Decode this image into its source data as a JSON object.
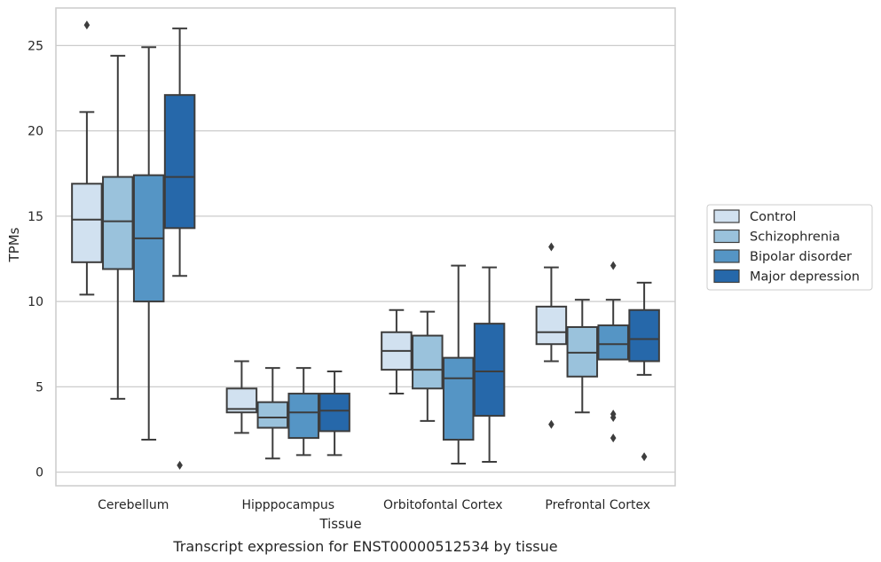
{
  "chart_data": {
    "type": "box",
    "xlabel": "Tissue",
    "ylabel": "TPMs",
    "caption": "Transcript expression for ENST00000512534 by tissue",
    "ylim": [
      -0.8,
      27.2
    ],
    "yticks": [
      0,
      5,
      10,
      15,
      20,
      25
    ],
    "grid": "horizontal",
    "legend_position": "right",
    "categories": [
      "Cerebellum",
      "Hipppocampus",
      "Orbitofontal Cortex",
      "Prefrontal Cortex"
    ],
    "series": [
      {
        "name": "Control",
        "color": "#d1e1f0",
        "boxes": [
          {
            "whislo": 10.4,
            "q1": 12.3,
            "med": 14.8,
            "q3": 16.9,
            "whishi": 21.1,
            "fliers": [
              26.2
            ]
          },
          {
            "whislo": 2.3,
            "q1": 3.5,
            "med": 3.7,
            "q3": 4.9,
            "whishi": 6.5,
            "fliers": []
          },
          {
            "whislo": 4.6,
            "q1": 6.0,
            "med": 7.1,
            "q3": 8.2,
            "whishi": 9.5,
            "fliers": []
          },
          {
            "whislo": 6.5,
            "q1": 7.5,
            "med": 8.2,
            "q3": 9.7,
            "whishi": 12.0,
            "fliers": [
              13.2,
              2.8
            ]
          }
        ]
      },
      {
        "name": "Schizophrenia",
        "color": "#9ac2dc",
        "boxes": [
          {
            "whislo": 4.3,
            "q1": 11.9,
            "med": 14.7,
            "q3": 17.3,
            "whishi": 24.4,
            "fliers": []
          },
          {
            "whislo": 0.8,
            "q1": 2.6,
            "med": 3.2,
            "q3": 4.1,
            "whishi": 6.1,
            "fliers": []
          },
          {
            "whislo": 3.0,
            "q1": 4.9,
            "med": 6.0,
            "q3": 8.0,
            "whishi": 9.4,
            "fliers": []
          },
          {
            "whislo": 3.5,
            "q1": 5.6,
            "med": 7.0,
            "q3": 8.5,
            "whishi": 10.1,
            "fliers": []
          }
        ]
      },
      {
        "name": "Bipolar disorder",
        "color": "#5595c5",
        "boxes": [
          {
            "whislo": 1.9,
            "q1": 10.0,
            "med": 13.7,
            "q3": 17.4,
            "whishi": 24.9,
            "fliers": []
          },
          {
            "whislo": 1.0,
            "q1": 2.0,
            "med": 3.5,
            "q3": 4.6,
            "whishi": 6.1,
            "fliers": []
          },
          {
            "whislo": 0.5,
            "q1": 1.9,
            "med": 5.5,
            "q3": 6.7,
            "whishi": 12.1,
            "fliers": []
          },
          {
            "whislo": 6.6,
            "q1": 6.6,
            "med": 7.5,
            "q3": 8.6,
            "whishi": 10.1,
            "fliers": [
              12.1,
              3.4,
              3.2,
              2.0
            ]
          }
        ]
      },
      {
        "name": "Major depression",
        "color": "#2668aa",
        "boxes": [
          {
            "whislo": 11.5,
            "q1": 14.3,
            "med": 17.3,
            "q3": 22.1,
            "whishi": 26.0,
            "fliers": [
              0.4
            ]
          },
          {
            "whislo": 1.0,
            "q1": 2.4,
            "med": 3.6,
            "q3": 4.6,
            "whishi": 5.9,
            "fliers": []
          },
          {
            "whislo": 0.6,
            "q1": 3.3,
            "med": 5.9,
            "q3": 8.7,
            "whishi": 12.0,
            "fliers": []
          },
          {
            "whislo": 5.7,
            "q1": 6.5,
            "med": 7.8,
            "q3": 9.5,
            "whishi": 11.1,
            "fliers": [
              0.9
            ]
          }
        ]
      }
    ]
  }
}
